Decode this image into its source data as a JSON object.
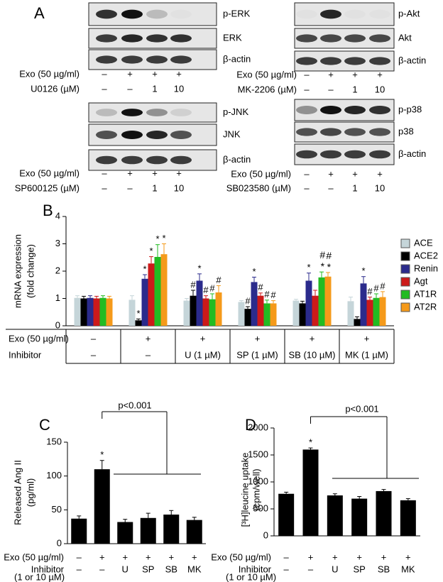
{
  "panel_a": {
    "label": "A",
    "blots": [
      {
        "rows": [
          "p-ERK",
          "ERK",
          "β-actin"
        ],
        "treatments": [
          {
            "label": "Exo (50 µg/ml)",
            "values": [
              "–",
              "+",
              "+",
              "+"
            ]
          },
          {
            "label": "U0126 (µM)",
            "values": [
              "–",
              "–",
              "1",
              "10"
            ]
          }
        ]
      },
      {
        "rows": [
          "p-JNK",
          "JNK",
          "β-actin"
        ],
        "treatments": [
          {
            "label": "Exo (50 µg/ml)",
            "values": [
              "–",
              "+",
              "+",
              "+"
            ]
          },
          {
            "label": "SP600125 (µM)",
            "values": [
              "–",
              "–",
              "1",
              "10"
            ]
          }
        ]
      },
      {
        "rows": [
          "p-Akt",
          "Akt",
          "β-actin"
        ],
        "treatments": [
          {
            "label": "Exo (50 µg/ml)",
            "values": [
              "–",
              "+",
              "+",
              "+"
            ]
          },
          {
            "label": "MK-2206 (µM)",
            "values": [
              "–",
              "–",
              "1",
              "10"
            ]
          }
        ]
      },
      {
        "rows": [
          "p-p38",
          "p38",
          "β-actin"
        ],
        "treatments": [
          {
            "label": "Exo (50 µg/ml)",
            "values": [
              "–",
              "+",
              "+",
              "+"
            ]
          },
          {
            "label": "SB023580 (µM)",
            "values": [
              "–",
              "–",
              "1",
              "10"
            ]
          }
        ]
      }
    ]
  },
  "chart_data": [
    {
      "type": "bar",
      "panel": "B",
      "ylabel": [
        "mRNA expression",
        "(fold change)"
      ],
      "categories": [
        null,
        null,
        null,
        null,
        null,
        null
      ],
      "ylim": [
        0,
        4
      ],
      "yticks": [
        0,
        1,
        2,
        3,
        4
      ],
      "series": [
        {
          "name": "ACE",
          "color": "#c5d5d9",
          "values": [
            1.02,
            0.95,
            0.92,
            0.87,
            0.92,
            0.9
          ],
          "errors": [
            0.08,
            0.15,
            0.08,
            0.05,
            0.05,
            0.15
          ],
          "markers": [
            null,
            null,
            null,
            null,
            null,
            null
          ]
        },
        {
          "name": "ACE2",
          "color": "#000000",
          "values": [
            1.0,
            0.2,
            1.1,
            0.62,
            0.82,
            0.25
          ],
          "errors": [
            0.08,
            0.05,
            0.2,
            0.08,
            0.08,
            0.08
          ],
          "markers": [
            null,
            "*",
            "#",
            "#",
            null,
            null
          ]
        },
        {
          "name": "Renin",
          "color": "#2b2b8c",
          "values": [
            1.02,
            1.72,
            1.65,
            1.6,
            1.65,
            1.55
          ],
          "errors": [
            0.08,
            0.15,
            0.25,
            0.18,
            0.28,
            0.25
          ],
          "markers": [
            null,
            "*",
            "*",
            "*",
            "*",
            "*"
          ]
        },
        {
          "name": "Agt",
          "color": "#cc1a1a",
          "values": [
            1.0,
            2.28,
            1.0,
            1.1,
            1.1,
            0.95
          ],
          "errors": [
            0.08,
            0.25,
            0.1,
            0.1,
            0.2,
            0.1
          ],
          "markers": [
            null,
            "*",
            "#",
            "#",
            null,
            "#"
          ]
        },
        {
          "name": "AT1R",
          "color": "#22bb22",
          "values": [
            1.02,
            2.52,
            0.97,
            0.82,
            1.77,
            1.02
          ],
          "errors": [
            0.08,
            0.45,
            0.2,
            0.12,
            0.2,
            0.15
          ],
          "markers": [
            null,
            "*",
            "#",
            "#",
            "#*",
            "#"
          ]
        },
        {
          "name": "AT2R",
          "color": "#f59a1a",
          "values": [
            1.0,
            2.62,
            1.22,
            0.82,
            1.8,
            1.05
          ],
          "errors": [
            0.08,
            0.38,
            0.25,
            0.1,
            0.15,
            0.2
          ],
          "markers": [
            null,
            "*",
            "#",
            "#",
            "#*",
            "#"
          ]
        }
      ],
      "conditions": [
        {
          "label": "Exo (50 µg/ml)",
          "values": [
            "–",
            "+",
            "+",
            "+",
            "+",
            "+"
          ]
        },
        {
          "label": "Inhibitor",
          "values": [
            "–",
            "–",
            "U (1 µM)",
            "SP (1 µM)",
            "SB (10 µM)",
            "MK (1 µM)"
          ]
        }
      ]
    },
    {
      "type": "bar",
      "panel": "C",
      "ylabel": [
        "Released Ang II",
        "(pg/ml)"
      ],
      "categories": [
        null,
        null,
        null,
        null,
        null,
        null
      ],
      "values": [
        37,
        110,
        32,
        38,
        43,
        35
      ],
      "errors": [
        4,
        13,
        4,
        7,
        6,
        4
      ],
      "color": "#000000",
      "markers": [
        null,
        "*",
        null,
        null,
        null,
        null
      ],
      "annotation": "p<0.001",
      "ylim": [
        0,
        150
      ],
      "yticks": [
        0,
        50,
        100,
        150
      ],
      "conditions": [
        {
          "label": "Exo (50 µg/ml)",
          "values": [
            "–",
            "+",
            "+",
            "+",
            "+",
            "+"
          ]
        },
        {
          "label": "Inhibitor",
          "values": [
            "–",
            "–",
            "U",
            "SP",
            "SB",
            "MK"
          ]
        }
      ],
      "condition_note": "(1 or 10 µM)"
    },
    {
      "type": "bar",
      "panel": "D",
      "ylabel": [
        "[³H]leucine uptake",
        "(cpm/well)"
      ],
      "categories": [
        null,
        null,
        null,
        null,
        null,
        null
      ],
      "values": [
        780,
        1600,
        750,
        690,
        830,
        660
      ],
      "errors": [
        30,
        30,
        30,
        40,
        30,
        30
      ],
      "color": "#000000",
      "markers": [
        null,
        "*",
        null,
        null,
        null,
        null
      ],
      "annotation": "p<0.001",
      "ylim": [
        0,
        2000
      ],
      "yticks": [
        0,
        500,
        1000,
        1500,
        2000
      ],
      "conditions": [
        {
          "label": "Exo (50 µg/ml)",
          "values": [
            "–",
            "+",
            "+",
            "+",
            "+",
            "+"
          ]
        },
        {
          "label": "Inhibitor",
          "values": [
            "–",
            "–",
            "U",
            "SP",
            "SB",
            "MK"
          ]
        }
      ],
      "condition_note": "(1 or 10 µM)"
    }
  ]
}
